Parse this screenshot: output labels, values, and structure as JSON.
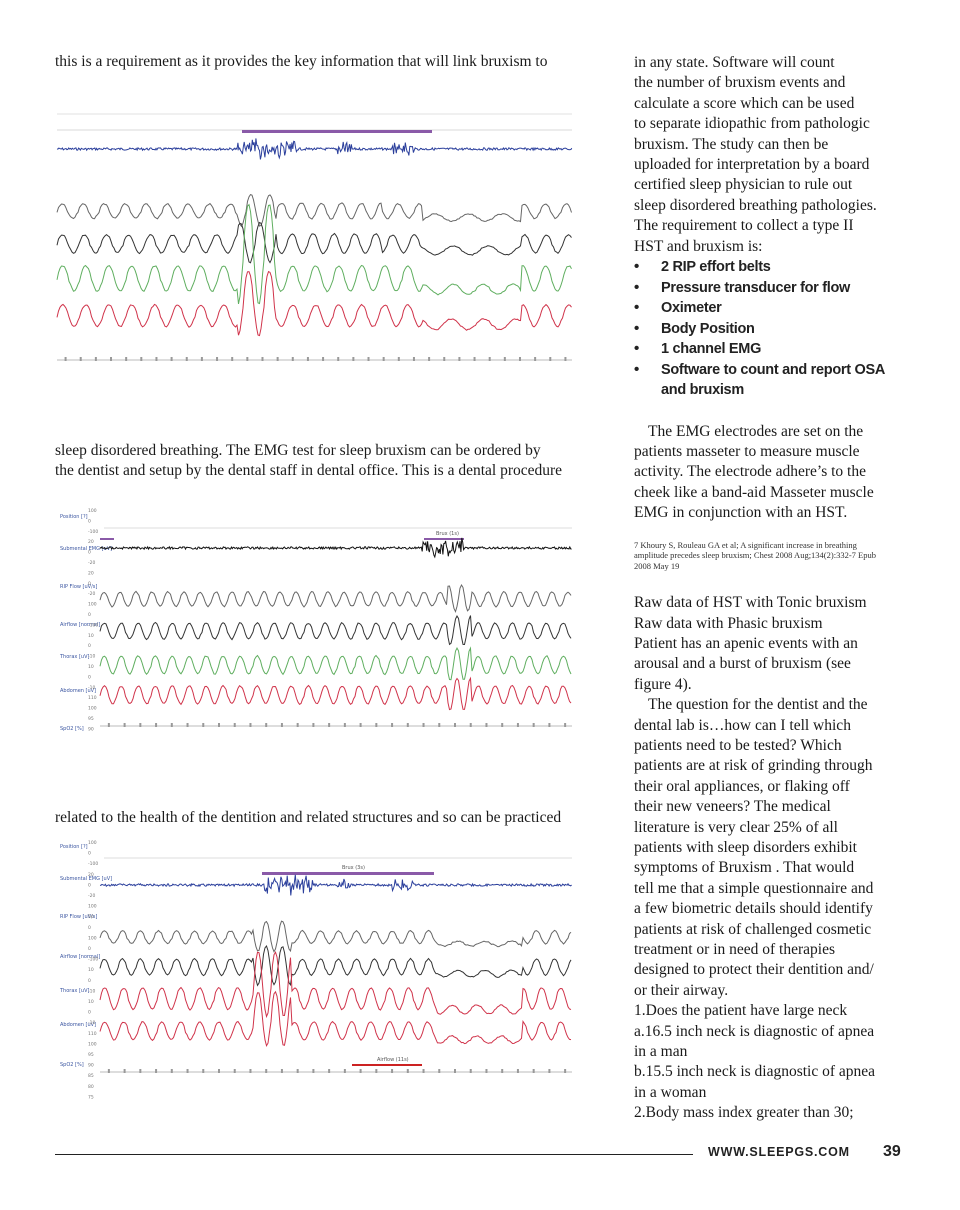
{
  "left": {
    "text1": "this is a requirement as it provides the key information that will link bruxism to",
    "text2a": "sleep disordered breathing. The EMG test for sleep bruxism can be ordered by",
    "text2b": "the dentist and setup by the dental staff in dental office. This is a dental procedure",
    "text3": "related to the health of the dentition and related structures and so can be practiced"
  },
  "right": {
    "p1": [
      "in any state. Software will count",
      "the number of bruxism events and",
      "calculate a score which can be used",
      "to separate idiopathic from pathologic",
      "bruxism. The study can then be",
      "uploaded for interpretation by a board",
      "certified sleep physician to rule out",
      "sleep disordered breathing pathologies.",
      "The requirement to collect a type II",
      "HST and bruxism is:"
    ],
    "bullets": [
      "2 RIP effort belts",
      "Pressure transducer for flow",
      "Oximeter",
      "Body Position",
      "1 channel EMG",
      "Software to count and report OSA",
      "and bruxism"
    ],
    "p2": [
      "The EMG electrodes are set on the",
      "patients masseter to measure muscle",
      "activity. The electrode adhere’s to the",
      "cheek like a band-aid Masseter muscle",
      "EMG in conjunction with an HST."
    ],
    "footnote": [
      "7 Khoury S, Rouleau GA et al; A significant increase in breathing",
      "amplitude precedes sleep bruxism; Chest 2008 Aug;134(2):332-7 Epub",
      "2008 May 19"
    ],
    "p3": [
      "Raw data of HST with Tonic bruxism",
      " Raw data with Phasic bruxism",
      "Patient has an apenic events with an",
      "arousal and a burst of bruxism (see",
      "figure 4)."
    ],
    "p4": [
      "The question for the dentist and the",
      "dental lab is…how can I tell which",
      "patients need to be tested? Which",
      "patients are at risk of grinding through",
      "their oral appliances, or flaking off",
      "their new veneers? The medical",
      "literature is very clear 25% of all",
      "patients with sleep disorders exhibit",
      "symptoms of Bruxism . That would",
      "tell me that a simple questionnaire and",
      "a few biometric details should identify",
      "patients at risk of challenged cosmetic",
      "treatment or in need of therapies",
      "designed to protect their dentition and/",
      "or their airway.",
      "1.Does the patient have large neck",
      "a.16.5 inch neck is diagnostic of apnea",
      "in a man",
      "b.15.5 inch neck is diagnostic of apnea",
      "in a woman",
      "2.Body mass index greater than 30;"
    ]
  },
  "footer": {
    "site": "WWW.SLEEPGS.COM",
    "page": "39"
  },
  "figures": {
    "fig2_labels": [
      "Position [?]",
      "Submental EMG [uV]",
      "RIP Flow [uV/s]",
      "Airflow [normal]",
      "Thorax [uV]",
      "Abdomen [uV]",
      "SpO2 [%]"
    ],
    "fig2_scale": [
      "100",
      "0",
      "-100",
      "20",
      "0",
      "-20",
      "20",
      "0",
      "-20",
      "100",
      "0",
      "-100",
      "10",
      "0",
      "-10",
      "10",
      "0",
      "-10",
      "110",
      "100",
      "95",
      "90"
    ],
    "fig3_labels": [
      "Position [?]",
      "Submental EMG [uV]",
      "RIP Flow [uV/s]",
      "Airflow [normal]",
      "Thorax [uV]",
      "Abdomen [uV]",
      "SpO2 [%]"
    ],
    "fig3_scale": [
      "100",
      "0",
      "-100",
      "20",
      "0",
      "-20",
      "100",
      "50",
      "0",
      "100",
      "0",
      "-100",
      "10",
      "0",
      "-10",
      "10",
      "0",
      "-10",
      "110",
      "100",
      "95",
      "90",
      "85",
      "80",
      "75"
    ],
    "fig2_event": "Brux (1s)",
    "fig3_event": "Brux (3s)",
    "fig3_event2": "Airflow (11s)",
    "colors": {
      "emg": "#2b3f9c",
      "event": "#8a5aa8",
      "trace_gray": "#666666",
      "trace_dark": "#333333",
      "trace_green": "#5fae5f",
      "trace_red": "#d0334a",
      "label_blue": "#3a55a0",
      "spo2": "#cc2222"
    }
  }
}
